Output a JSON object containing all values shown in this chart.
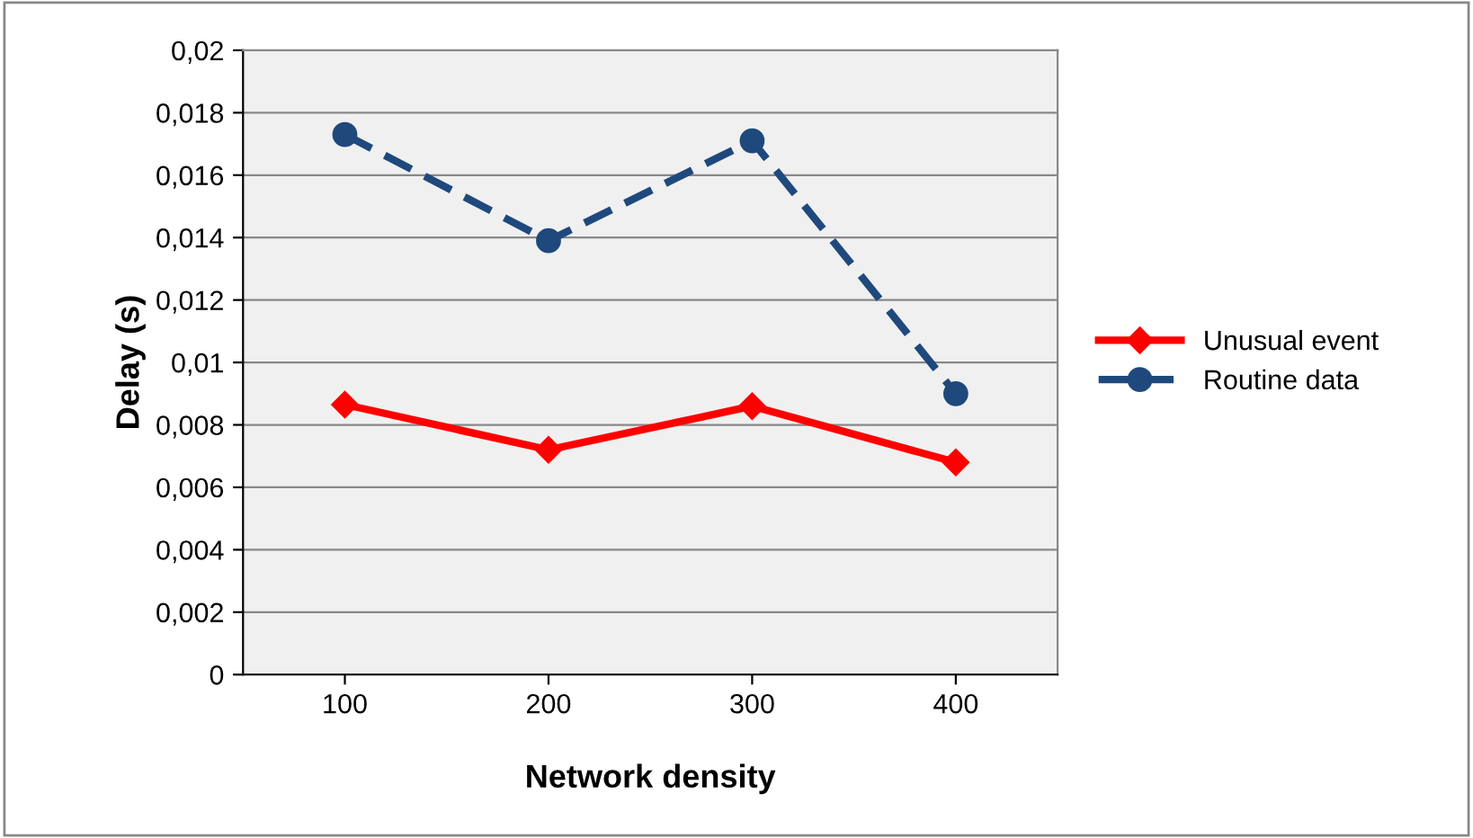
{
  "chart_data": {
    "type": "line",
    "xlabel": "Network density",
    "ylabel": "Delay (s)",
    "categories": [
      "100",
      "200",
      "300",
      "400"
    ],
    "series": [
      {
        "name": "Unusual event",
        "color": "#ff0000",
        "marker": "diamond",
        "line_style": "solid",
        "values": [
          0.00865,
          0.0072,
          0.0086,
          0.0068
        ]
      },
      {
        "name": "Routine data",
        "color": "#1f497d",
        "marker": "circle",
        "line_style": "dashed",
        "values": [
          0.0173,
          0.0139,
          0.0171,
          0.009
        ]
      }
    ],
    "ylim": [
      0,
      0.02
    ],
    "yticks": [
      0,
      {
        "value": 0.002,
        "label": "0,002"
      },
      {
        "value": 0.004,
        "label": "0,004"
      },
      {
        "value": 0.006,
        "label": "0,006"
      },
      {
        "value": 0.008,
        "label": "0,008"
      },
      {
        "value": 0.01,
        "label": "0,01"
      },
      {
        "value": 0.012,
        "label": "0,012"
      },
      {
        "value": 0.014,
        "label": "0,014"
      },
      {
        "value": 0.016,
        "label": "0,016"
      },
      {
        "value": 0.018,
        "label": "0,018"
      },
      {
        "value": 0.02,
        "label": "0,02"
      }
    ],
    "grid": "y",
    "legend": "right"
  }
}
